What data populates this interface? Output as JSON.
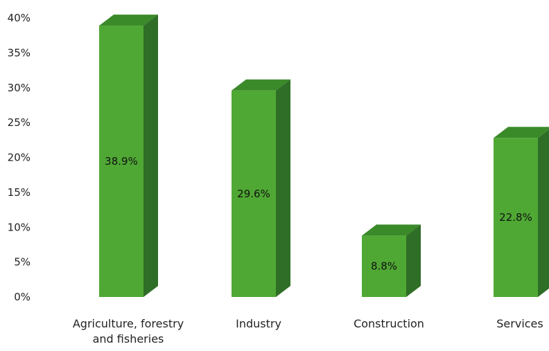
{
  "chart_data": {
    "type": "bar",
    "categories": [
      [
        "Agriculture, forestry",
        "and fisheries"
      ],
      [
        "Industry"
      ],
      [
        "Construction"
      ],
      [
        "Services"
      ]
    ],
    "values": [
      38.9,
      29.6,
      8.8,
      22.8
    ],
    "data_labels": [
      "38.9%",
      "29.6%",
      "8.8%",
      "22.8%"
    ],
    "y_ticks": [
      "0%",
      "5%",
      "10%",
      "15%",
      "20%",
      "25%",
      "30%",
      "35%",
      "40%"
    ],
    "ylim": [
      0,
      40
    ],
    "grid": false,
    "legend": "none",
    "style": "3d-column",
    "colors": {
      "bar_front": "#4fa834",
      "bar_top": "#3b8a2a",
      "bar_side": "#2f6e26"
    }
  }
}
